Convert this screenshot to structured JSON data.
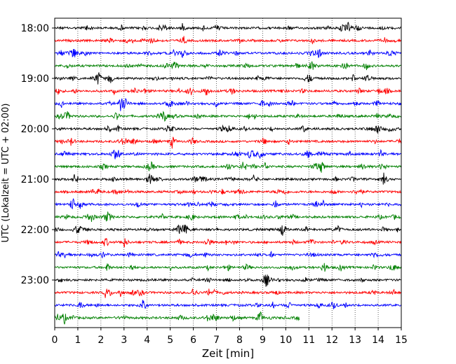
{
  "chart_data": {
    "type": "line",
    "title": "",
    "xlabel": "Zeit  [min]",
    "ylabel": "UTC (Lokalzeit = UTC + 02:00)",
    "xlim": [
      0,
      15
    ],
    "x_ticks": [
      0,
      1,
      2,
      3,
      4,
      5,
      6,
      7,
      8,
      9,
      10,
      11,
      12,
      13,
      14,
      15
    ],
    "x_tick_labels": [
      "0",
      "1",
      "2",
      "3",
      "4",
      "5",
      "6",
      "7",
      "8",
      "9",
      "10",
      "11",
      "12",
      "13",
      "14",
      "15"
    ],
    "y_tick_labels": [
      "18:00",
      "19:00",
      "20:00",
      "21:00",
      "22:00",
      "23:00"
    ],
    "grid": "vertical dotted",
    "row_interval_min": 15,
    "colors": [
      "#000000",
      "#ff0000",
      "#0000ff",
      "#008000"
    ],
    "series": [
      {
        "start": "18:00",
        "end_min": 15
      },
      {
        "start": "18:15",
        "end_min": 15
      },
      {
        "start": "18:30",
        "end_min": 15
      },
      {
        "start": "18:45",
        "end_min": 15
      },
      {
        "start": "19:00",
        "end_min": 15
      },
      {
        "start": "19:15",
        "end_min": 15
      },
      {
        "start": "19:30",
        "end_min": 15
      },
      {
        "start": "19:45",
        "end_min": 15
      },
      {
        "start": "20:00",
        "end_min": 15
      },
      {
        "start": "20:15",
        "end_min": 15
      },
      {
        "start": "20:30",
        "end_min": 15
      },
      {
        "start": "20:45",
        "end_min": 15
      },
      {
        "start": "21:00",
        "end_min": 15
      },
      {
        "start": "21:15",
        "end_min": 15
      },
      {
        "start": "21:30",
        "end_min": 15
      },
      {
        "start": "21:45",
        "end_min": 15
      },
      {
        "start": "22:00",
        "end_min": 15
      },
      {
        "start": "22:15",
        "end_min": 15
      },
      {
        "start": "22:30",
        "end_min": 15
      },
      {
        "start": "22:45",
        "end_min": 15
      },
      {
        "start": "23:00",
        "end_min": 15
      },
      {
        "start": "23:15",
        "end_min": 15
      },
      {
        "start": "23:30",
        "end_min": 15
      },
      {
        "start": "23:45",
        "end_min": 10.6
      }
    ]
  }
}
